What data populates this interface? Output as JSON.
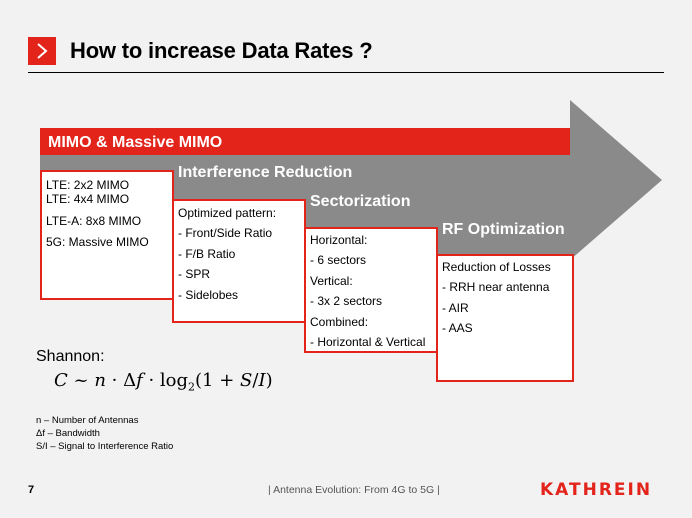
{
  "title": "How to increase Data Rates ?",
  "icon_marker": "chevron-right-icon",
  "colors": {
    "accent": "#e3241b",
    "arrow_gray": "#8a8a8a"
  },
  "bands": [
    {
      "label": "MIMO & Massive MIMO",
      "items": [
        "LTE: 2x2 MIMO",
        "LTE: 4x4 MIMO",
        "LTE-A: 8x8 MIMO",
        "5G:  Massive MIMO"
      ]
    },
    {
      "label": "Interference Reduction",
      "items": [
        "Optimized pattern:",
        "- Front/Side Ratio",
        "- F/B Ratio",
        "- SPR",
        "- Sidelobes"
      ]
    },
    {
      "label": "Sectorization",
      "items": [
        "Horizontal:",
        "- 6 sectors",
        "Vertical:",
        "- 3x 2 sectors",
        "Combined:",
        "- Horizontal & Vertical"
      ]
    },
    {
      "label": "RF Optimization",
      "items": [
        "Reduction of Losses",
        "- RRH near antenna",
        "- AIR",
        "- AAS"
      ]
    }
  ],
  "shannon": {
    "label": "Shannon:",
    "legend": [
      "n – Number of Antennas",
      "Δf – Bandwidth",
      "S/I – Signal to Interference Ratio"
    ]
  },
  "footer": {
    "page_number": "7",
    "text": "| Antenna Evolution: From 4G to 5G |",
    "logo": "KATHREIN"
  }
}
